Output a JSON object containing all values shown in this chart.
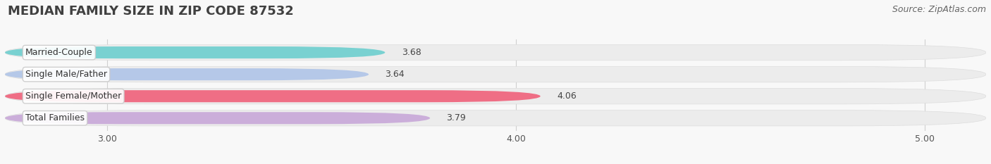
{
  "title": "MEDIAN FAMILY SIZE IN ZIP CODE 87532",
  "source": "Source: ZipAtlas.com",
  "categories": [
    "Married-Couple",
    "Single Male/Father",
    "Single Female/Mother",
    "Total Families"
  ],
  "values": [
    3.68,
    3.64,
    4.06,
    3.79
  ],
  "bar_colors": [
    "#6dcfcf",
    "#afc4e8",
    "#f0607a",
    "#c8a8d8"
  ],
  "xlim": [
    2.75,
    5.15
  ],
  "xstart": 2.75,
  "xticks": [
    3.0,
    4.0,
    5.0
  ],
  "xtick_labels": [
    "3.00",
    "4.00",
    "5.00"
  ],
  "background_color": "#f8f8f8",
  "bar_bg_color": "#ececec",
  "title_fontsize": 13,
  "source_fontsize": 9,
  "label_fontsize": 9,
  "value_fontsize": 9
}
